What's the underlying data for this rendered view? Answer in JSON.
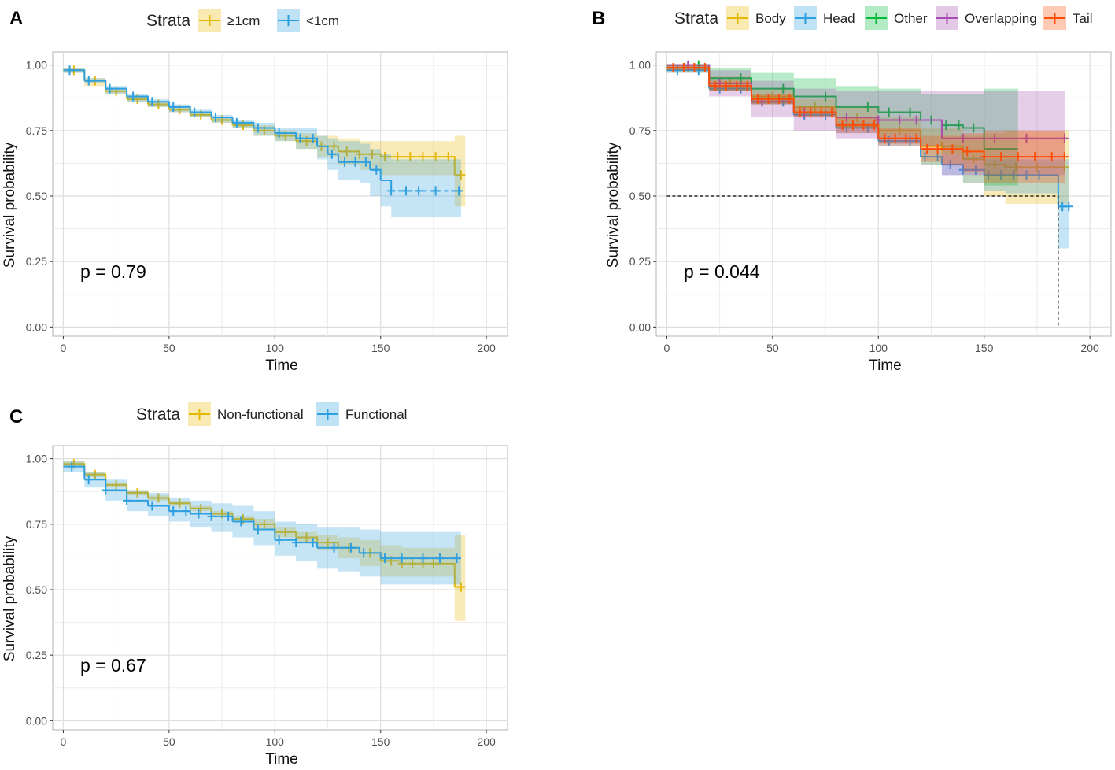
{
  "chart_data": [
    {
      "panel": "A",
      "type": "line",
      "title": "",
      "xlabel": "Time",
      "ylabel": "Survival probability",
      "xlim": [
        -5,
        210
      ],
      "ylim": [
        -0.035,
        1.05
      ],
      "xticks": [
        0,
        50,
        100,
        150,
        200
      ],
      "yticks": [
        0.0,
        0.25,
        0.5,
        0.75,
        1.0
      ],
      "ytick_labels": [
        "0.00",
        "0.25",
        "0.50",
        "0.75",
        "1.00"
      ],
      "legend_title": "Strata",
      "legend_position": "top",
      "p_value": "p = 0.79",
      "median_line": null,
      "series": [
        {
          "name": "≥1cm",
          "color": "#E7B800",
          "x": [
            0,
            10,
            20,
            30,
            40,
            50,
            60,
            70,
            80,
            90,
            100,
            110,
            120,
            130,
            140,
            150,
            160,
            170,
            175,
            180,
            185,
            190
          ],
          "y": [
            0.98,
            0.94,
            0.9,
            0.87,
            0.85,
            0.83,
            0.81,
            0.79,
            0.77,
            0.75,
            0.73,
            0.71,
            0.69,
            0.67,
            0.66,
            0.65,
            0.65,
            0.65,
            0.65,
            0.65,
            0.58,
            0.58
          ],
          "ci_lower": [
            0.97,
            0.92,
            0.89,
            0.86,
            0.84,
            0.82,
            0.8,
            0.78,
            0.76,
            0.73,
            0.71,
            0.68,
            0.65,
            0.62,
            0.6,
            0.58,
            0.58,
            0.58,
            0.58,
            0.58,
            0.46,
            0.46
          ],
          "ci_upper": [
            0.99,
            0.95,
            0.91,
            0.88,
            0.86,
            0.84,
            0.82,
            0.8,
            0.78,
            0.77,
            0.75,
            0.74,
            0.73,
            0.72,
            0.71,
            0.71,
            0.71,
            0.71,
            0.71,
            0.71,
            0.73,
            0.73
          ],
          "censor_x": [
            5,
            15,
            25,
            35,
            45,
            55,
            65,
            75,
            85,
            95,
            105,
            115,
            122,
            128,
            134,
            140,
            146,
            152,
            158,
            164,
            170,
            176,
            182,
            188
          ],
          "dashed": false
        },
        {
          "name": "<1cm",
          "color": "#2E9FDF",
          "x": [
            0,
            10,
            20,
            30,
            40,
            50,
            60,
            70,
            80,
            90,
            100,
            110,
            120,
            125,
            130,
            140,
            145,
            150,
            155,
            160,
            170,
            180,
            188
          ],
          "y": [
            0.98,
            0.94,
            0.91,
            0.88,
            0.86,
            0.84,
            0.82,
            0.8,
            0.78,
            0.76,
            0.74,
            0.72,
            0.69,
            0.66,
            0.63,
            0.63,
            0.6,
            0.56,
            0.52,
            0.52,
            0.52,
            0.52,
            0.52
          ],
          "ci_lower": [
            0.97,
            0.93,
            0.89,
            0.86,
            0.84,
            0.82,
            0.8,
            0.78,
            0.76,
            0.73,
            0.71,
            0.68,
            0.64,
            0.6,
            0.56,
            0.55,
            0.5,
            0.46,
            0.42,
            0.42,
            0.42,
            0.42,
            0.42
          ],
          "ci_upper": [
            0.99,
            0.95,
            0.92,
            0.89,
            0.87,
            0.85,
            0.83,
            0.81,
            0.79,
            0.78,
            0.76,
            0.76,
            0.73,
            0.72,
            0.71,
            0.7,
            0.68,
            0.66,
            0.64,
            0.64,
            0.64,
            0.64,
            0.64
          ],
          "censor_x": [
            3,
            12,
            22,
            33,
            42,
            52,
            62,
            72,
            82,
            92,
            102,
            112,
            118,
            127,
            133,
            138,
            143,
            148,
            155,
            162,
            168,
            176,
            187
          ],
          "dashed": true,
          "dash_from": 155
        }
      ]
    },
    {
      "panel": "B",
      "type": "line",
      "title": "",
      "xlabel": "Time",
      "ylabel": "Survival probability",
      "xlim": [
        -5,
        210
      ],
      "ylim": [
        -0.035,
        1.05
      ],
      "xticks": [
        0,
        50,
        100,
        150,
        200
      ],
      "yticks": [
        0.0,
        0.25,
        0.5,
        0.75,
        1.0
      ],
      "ytick_labels": [
        "0.00",
        "0.25",
        "0.50",
        "0.75",
        "1.00"
      ],
      "legend_title": "Strata",
      "legend_position": "top",
      "p_value": "p = 0.044",
      "median_line": {
        "y": 0.5,
        "x": 185
      },
      "series": [
        {
          "name": "Body",
          "color": "#E7B800",
          "x": [
            0,
            20,
            40,
            60,
            80,
            100,
            120,
            140,
            150,
            160,
            170,
            180,
            190
          ],
          "y": [
            0.99,
            0.93,
            0.88,
            0.84,
            0.8,
            0.75,
            0.69,
            0.64,
            0.62,
            0.61,
            0.61,
            0.61,
            0.61
          ],
          "ci_lower": [
            0.97,
            0.9,
            0.85,
            0.8,
            0.76,
            0.7,
            0.62,
            0.55,
            0.5,
            0.47,
            0.47,
            0.47,
            0.47
          ],
          "ci_upper": [
            1.0,
            0.96,
            0.91,
            0.87,
            0.84,
            0.8,
            0.76,
            0.73,
            0.74,
            0.75,
            0.75,
            0.75,
            0.75
          ],
          "censor_x": [
            10,
            30,
            50,
            70,
            90,
            110,
            130,
            145,
            155,
            165,
            175,
            188
          ],
          "dashed": false
        },
        {
          "name": "Head",
          "color": "#2E9FDF",
          "x": [
            0,
            20,
            40,
            60,
            80,
            100,
            120,
            130,
            140,
            150,
            160,
            170,
            180,
            185,
            190
          ],
          "y": [
            0.98,
            0.91,
            0.86,
            0.81,
            0.76,
            0.71,
            0.65,
            0.62,
            0.6,
            0.58,
            0.58,
            0.58,
            0.58,
            0.46,
            0.46
          ],
          "ci_lower": [
            0.97,
            0.9,
            0.85,
            0.8,
            0.74,
            0.69,
            0.62,
            0.58,
            0.55,
            0.52,
            0.51,
            0.51,
            0.51,
            0.3,
            0.3
          ],
          "ci_upper": [
            0.99,
            0.92,
            0.87,
            0.82,
            0.78,
            0.73,
            0.68,
            0.66,
            0.65,
            0.64,
            0.64,
            0.64,
            0.64,
            0.64,
            0.64
          ],
          "censor_x": [
            5,
            15,
            25,
            35,
            45,
            55,
            65,
            75,
            85,
            95,
            105,
            115,
            122,
            128,
            134,
            140,
            146,
            152,
            158,
            164,
            170,
            176,
            187,
            190
          ],
          "dashed": false
        },
        {
          "name": "Other",
          "color": "#00BA38",
          "x": [
            0,
            20,
            40,
            60,
            80,
            100,
            120,
            130,
            140,
            150,
            160,
            166
          ],
          "y": [
            1.0,
            0.95,
            0.91,
            0.88,
            0.84,
            0.82,
            0.79,
            0.77,
            0.76,
            0.68,
            0.68,
            0.68
          ],
          "ci_lower": [
            0.98,
            0.9,
            0.85,
            0.81,
            0.76,
            0.73,
            0.69,
            0.66,
            0.64,
            0.54,
            0.54,
            0.54
          ],
          "ci_upper": [
            1.0,
            0.99,
            0.97,
            0.95,
            0.92,
            0.91,
            0.89,
            0.89,
            0.89,
            0.91,
            0.91,
            0.91
          ],
          "censor_x": [
            15,
            35,
            55,
            75,
            95,
            105,
            115,
            125,
            132,
            138,
            145
          ],
          "dashed": false
        },
        {
          "name": "Overlapping",
          "color": "#A54CB1",
          "x": [
            0,
            20,
            40,
            60,
            80,
            100,
            110,
            120,
            130,
            150,
            160,
            170,
            180,
            188
          ],
          "y": [
            1.0,
            0.93,
            0.86,
            0.82,
            0.8,
            0.79,
            0.79,
            0.79,
            0.72,
            0.72,
            0.72,
            0.72,
            0.72,
            0.72
          ],
          "ci_lower": [
            0.98,
            0.88,
            0.8,
            0.75,
            0.72,
            0.7,
            0.7,
            0.69,
            0.58,
            0.58,
            0.58,
            0.58,
            0.58,
            0.58
          ],
          "ci_upper": [
            1.0,
            0.98,
            0.94,
            0.91,
            0.9,
            0.9,
            0.9,
            0.9,
            0.9,
            0.9,
            0.9,
            0.9,
            0.9,
            0.9
          ],
          "censor_x": [
            10,
            25,
            45,
            65,
            85,
            100,
            110,
            118,
            140,
            155,
            170,
            188
          ],
          "dashed": false
        },
        {
          "name": "Tail",
          "color": "#FC4E07",
          "x": [
            0,
            20,
            40,
            60,
            80,
            100,
            120,
            130,
            140,
            150,
            160,
            170,
            180,
            188
          ],
          "y": [
            0.99,
            0.92,
            0.87,
            0.82,
            0.77,
            0.72,
            0.68,
            0.68,
            0.67,
            0.65,
            0.65,
            0.65,
            0.65,
            0.65
          ],
          "ci_lower": [
            0.98,
            0.9,
            0.85,
            0.8,
            0.74,
            0.69,
            0.63,
            0.62,
            0.59,
            0.55,
            0.55,
            0.55,
            0.55,
            0.55
          ],
          "ci_upper": [
            1.0,
            0.94,
            0.89,
            0.84,
            0.8,
            0.76,
            0.73,
            0.73,
            0.74,
            0.75,
            0.75,
            0.75,
            0.75,
            0.75
          ],
          "censor_x": [
            3,
            8,
            13,
            18,
            23,
            28,
            33,
            38,
            43,
            48,
            53,
            58,
            63,
            68,
            73,
            78,
            83,
            88,
            93,
            98,
            103,
            108,
            113,
            118,
            123,
            128,
            135,
            142,
            150,
            158,
            166,
            174,
            182,
            188
          ],
          "dashed": false
        }
      ]
    },
    {
      "panel": "C",
      "type": "line",
      "title": "",
      "xlabel": "Time",
      "ylabel": "Survival probability",
      "xlim": [
        -5,
        210
      ],
      "ylim": [
        -0.035,
        1.05
      ],
      "xticks": [
        0,
        50,
        100,
        150,
        200
      ],
      "yticks": [
        0.0,
        0.25,
        0.5,
        0.75,
        1.0
      ],
      "ytick_labels": [
        "0.00",
        "0.25",
        "0.50",
        "0.75",
        "1.00"
      ],
      "legend_title": "Strata",
      "legend_position": "top",
      "p_value": "p = 0.67",
      "median_line": null,
      "series": [
        {
          "name": "Non-functional",
          "color": "#E7B800",
          "x": [
            0,
            10,
            20,
            30,
            40,
            50,
            60,
            70,
            80,
            90,
            100,
            110,
            120,
            130,
            140,
            150,
            160,
            170,
            180,
            185,
            190
          ],
          "y": [
            0.98,
            0.94,
            0.9,
            0.87,
            0.85,
            0.83,
            0.81,
            0.79,
            0.77,
            0.75,
            0.72,
            0.7,
            0.68,
            0.66,
            0.64,
            0.61,
            0.6,
            0.6,
            0.6,
            0.51,
            0.51
          ],
          "ci_lower": [
            0.97,
            0.93,
            0.89,
            0.86,
            0.84,
            0.82,
            0.8,
            0.78,
            0.76,
            0.73,
            0.7,
            0.68,
            0.65,
            0.62,
            0.59,
            0.55,
            0.55,
            0.55,
            0.55,
            0.38,
            0.38
          ],
          "ci_upper": [
            0.99,
            0.95,
            0.91,
            0.88,
            0.86,
            0.84,
            0.82,
            0.8,
            0.78,
            0.77,
            0.74,
            0.72,
            0.71,
            0.7,
            0.69,
            0.67,
            0.66,
            0.66,
            0.66,
            0.71,
            0.71
          ],
          "censor_x": [
            5,
            15,
            25,
            35,
            45,
            55,
            65,
            75,
            85,
            95,
            105,
            115,
            125,
            135,
            145,
            155,
            160,
            165,
            170,
            175,
            188
          ],
          "dashed": false
        },
        {
          "name": "Functional",
          "color": "#2E9FDF",
          "x": [
            0,
            10,
            20,
            30,
            40,
            50,
            60,
            70,
            80,
            90,
            100,
            110,
            120,
            130,
            140,
            150,
            160,
            170,
            180,
            188
          ],
          "y": [
            0.97,
            0.92,
            0.88,
            0.84,
            0.82,
            0.8,
            0.79,
            0.78,
            0.76,
            0.73,
            0.69,
            0.68,
            0.66,
            0.66,
            0.64,
            0.62,
            0.62,
            0.62,
            0.62,
            0.62
          ],
          "ci_lower": [
            0.95,
            0.89,
            0.84,
            0.8,
            0.78,
            0.76,
            0.74,
            0.72,
            0.7,
            0.67,
            0.63,
            0.61,
            0.58,
            0.57,
            0.55,
            0.52,
            0.52,
            0.52,
            0.52,
            0.52
          ],
          "ci_upper": [
            0.99,
            0.95,
            0.92,
            0.88,
            0.87,
            0.85,
            0.84,
            0.83,
            0.82,
            0.8,
            0.76,
            0.75,
            0.74,
            0.74,
            0.73,
            0.72,
            0.72,
            0.72,
            0.72,
            0.72
          ],
          "censor_x": [
            4,
            12,
            20,
            30,
            42,
            52,
            58,
            64,
            70,
            78,
            84,
            92,
            102,
            110,
            118,
            128,
            136,
            142,
            152,
            160,
            170,
            178,
            186
          ],
          "dashed": false
        }
      ]
    }
  ]
}
